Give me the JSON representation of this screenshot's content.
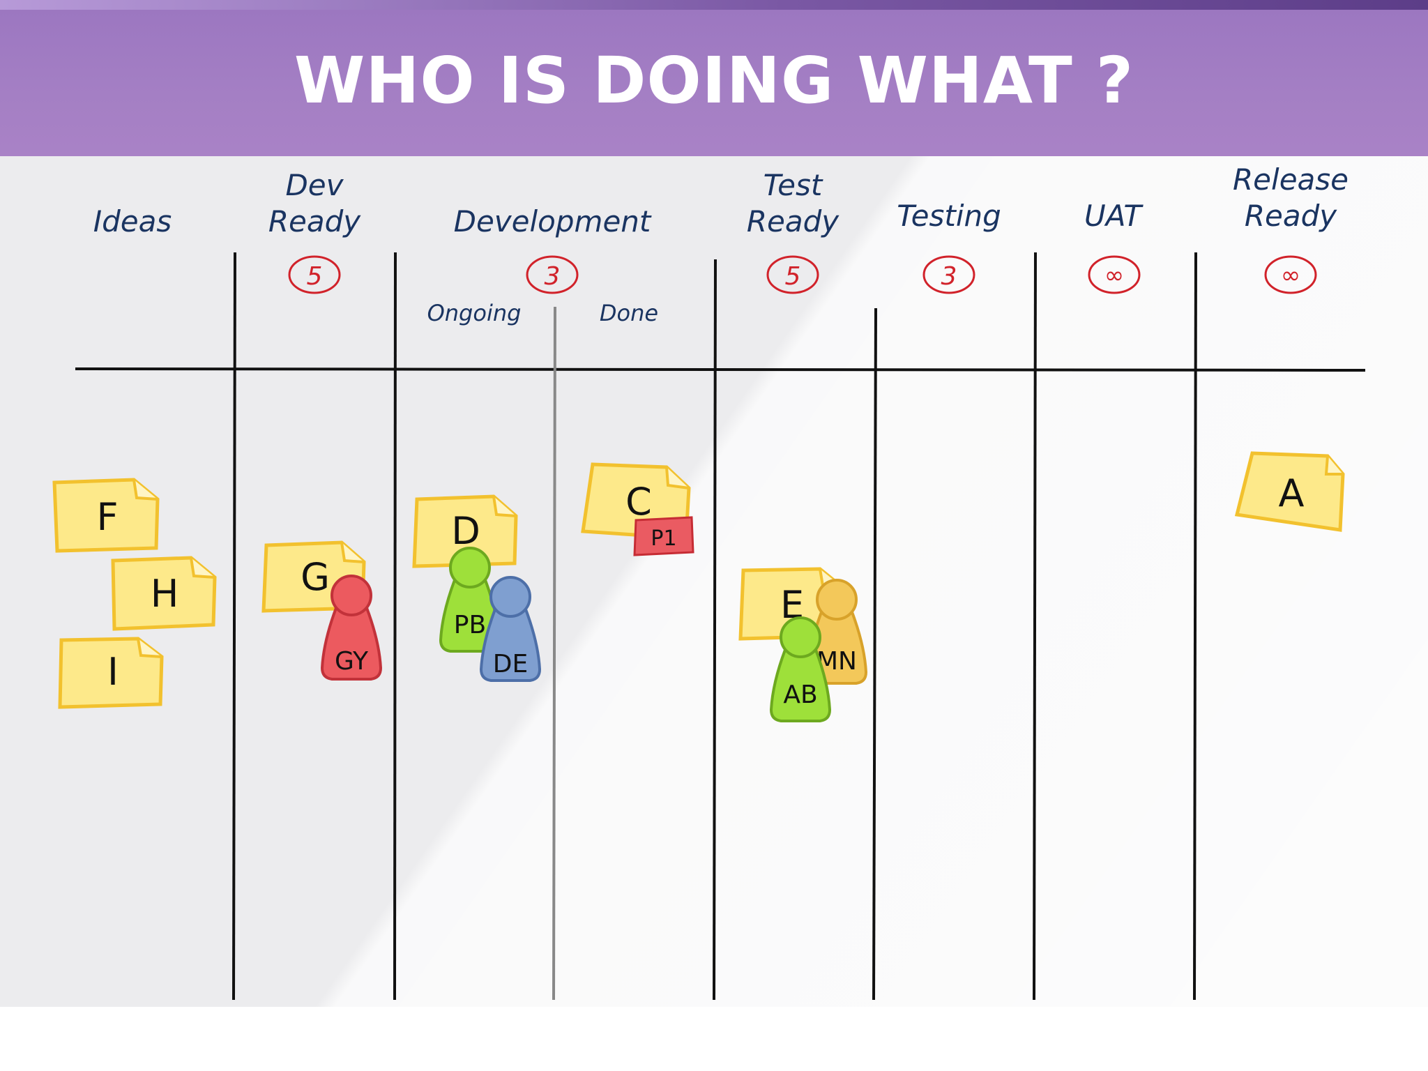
{
  "title": "WHO IS DOING WHAT ?",
  "columns": {
    "ideas": "Ideas",
    "dev_ready_1": "Dev",
    "dev_ready_2": "Ready",
    "development": "Development",
    "test_ready_1": "Test",
    "test_ready_2": "Ready",
    "testing": "Testing",
    "uat": "UAT",
    "release_ready_1": "Release",
    "release_ready_2": "Ready"
  },
  "subcolumns": {
    "ongoing": "Ongoing",
    "done": "Done"
  },
  "wip_limits": {
    "dev_ready": "5",
    "development": "3",
    "test_ready": "5",
    "testing": "3",
    "uat": "∞",
    "release_ready": "∞"
  },
  "cards": {
    "F": "F",
    "H": "H",
    "I": "I",
    "G": "G",
    "D": "D",
    "C": "C",
    "E": "E",
    "A": "A",
    "blocker": "P1"
  },
  "people": {
    "GY": "GY",
    "PB": "PB",
    "DE": "DE",
    "MN": "MN",
    "AB": "AB"
  },
  "colors": {
    "banner": "#a47fc4",
    "sticky": "#fde98a",
    "sticky_border": "#f2c12e",
    "limit_circle": "#d1222a",
    "handwriting": "#1a3461",
    "person_red": "#ec5a5f",
    "person_green": "#9ee03a",
    "person_blue": "#7f9fd0",
    "person_orange": "#f3c85a",
    "blocker": "#ea5b62"
  }
}
